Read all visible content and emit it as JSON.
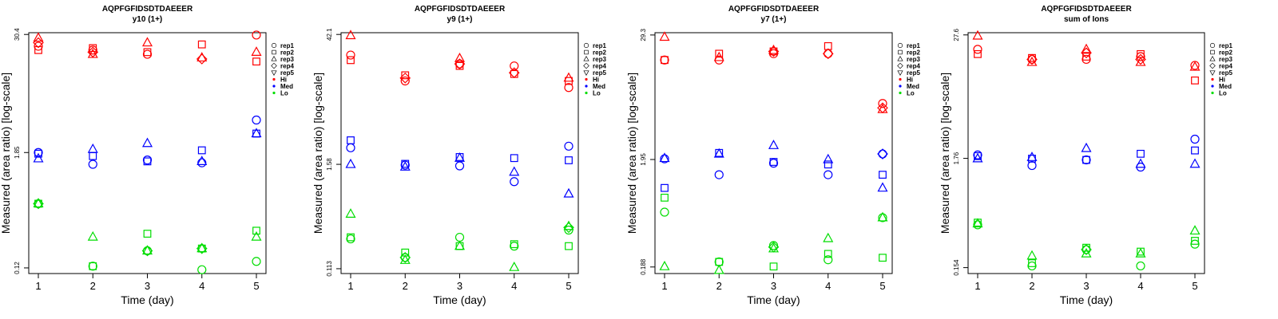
{
  "legend": {
    "shapes": [
      {
        "label": "rep1",
        "shape": "circle"
      },
      {
        "label": "rep2",
        "shape": "square"
      },
      {
        "label": "rep3",
        "shape": "triangle"
      },
      {
        "label": "rep4",
        "shape": "diamond"
      },
      {
        "label": "rep5",
        "shape": "triangle-down"
      }
    ],
    "levels": [
      {
        "label": "Hi",
        "color": "#ff0000"
      },
      {
        "label": "Med",
        "color": "#0000ff"
      },
      {
        "label": "Lo",
        "color": "#00dd00"
      }
    ]
  },
  "chart_data": [
    {
      "type": "scatter",
      "title": "AQPFGFIDSDTDAEEER",
      "subtitle": "y10 (1+)",
      "xlabel": "Time (day)",
      "ylabel": "Measured (area ratio) [log-scale]",
      "y_scale": "log",
      "x_ticks": [
        1,
        2,
        3,
        4,
        5
      ],
      "y_ticks": [
        "0.12",
        "1.85",
        "30.4"
      ],
      "y_tick_values": [
        0.12,
        1.85,
        30.4
      ],
      "ylim": [
        0.105,
        31.7
      ],
      "legend_position": "right",
      "series": [
        {
          "level": "Hi",
          "rep": "rep1",
          "x": [
            1,
            2,
            3,
            4,
            5
          ],
          "y": [
            23.0,
            21.0,
            19.0,
            null,
            30.0
          ]
        },
        {
          "level": "Hi",
          "rep": "rep2",
          "x": [
            1,
            2,
            3,
            4,
            5
          ],
          "y": [
            21.0,
            22.0,
            20.0,
            24.0,
            16.0
          ]
        },
        {
          "level": "Hi",
          "rep": "rep3",
          "x": [
            1,
            2,
            3,
            4,
            5
          ],
          "y": [
            28.0,
            19.0,
            25.0,
            17.5,
            20.0
          ]
        },
        {
          "level": "Hi",
          "rep": "rep4",
          "x": [
            1,
            2,
            3,
            4,
            5
          ],
          "y": [
            25.0,
            20.0,
            null,
            17.0,
            null
          ]
        },
        {
          "level": "Med",
          "rep": "rep1",
          "x": [
            1,
            2,
            3,
            4,
            5
          ],
          "y": [
            1.85,
            1.4,
            1.55,
            1.45,
            4.0
          ]
        },
        {
          "level": "Med",
          "rep": "rep2",
          "x": [
            1,
            2,
            3,
            4,
            5
          ],
          "y": [
            1.8,
            1.7,
            1.5,
            1.95,
            2.9
          ]
        },
        {
          "level": "Med",
          "rep": "rep3",
          "x": [
            1,
            2,
            3,
            4,
            5
          ],
          "y": [
            1.6,
            2.0,
            2.3,
            1.5,
            2.9
          ]
        },
        {
          "level": "Lo",
          "rep": "rep1",
          "x": [
            1,
            2,
            3,
            4,
            5
          ],
          "y": [
            0.55,
            0.125,
            0.18,
            0.115,
            0.14
          ]
        },
        {
          "level": "Lo",
          "rep": "rep2",
          "x": [
            1,
            2,
            3,
            4,
            5
          ],
          "y": [
            0.55,
            0.125,
            0.27,
            0.19,
            0.29
          ]
        },
        {
          "level": "Lo",
          "rep": "rep3",
          "x": [
            1,
            2,
            3,
            4,
            5
          ],
          "y": [
            0.55,
            0.25,
            0.18,
            0.19,
            0.25
          ]
        },
        {
          "level": "Lo",
          "rep": "rep4",
          "x": [
            1,
            2,
            3,
            4,
            5
          ],
          "y": [
            0.55,
            null,
            0.18,
            0.19,
            null
          ]
        }
      ]
    },
    {
      "type": "scatter",
      "title": "AQPFGFIDSDTDAEEER",
      "subtitle": "y9 (1+)",
      "xlabel": "Time (day)",
      "ylabel": "Measured (area ratio) [log-scale]",
      "y_scale": "log",
      "x_ticks": [
        1,
        2,
        3,
        4,
        5
      ],
      "y_ticks": [
        "0.113",
        "1.58",
        "42.1"
      ],
      "y_tick_values": [
        0.113,
        1.58,
        42.1
      ],
      "ylim": [
        0.1,
        44.0
      ],
      "legend_position": "right",
      "series": [
        {
          "level": "Hi",
          "rep": "rep1",
          "x": [
            1,
            2,
            3,
            4,
            5
          ],
          "y": [
            25.0,
            13.0,
            20.0,
            19.0,
            11.0
          ]
        },
        {
          "level": "Hi",
          "rep": "rep2",
          "x": [
            1,
            2,
            3,
            4,
            5
          ],
          "y": [
            22.0,
            15.0,
            19.0,
            15.5,
            13.0
          ]
        },
        {
          "level": "Hi",
          "rep": "rep3",
          "x": [
            1,
            2,
            3,
            4,
            5
          ],
          "y": [
            41.0,
            null,
            23.0,
            null,
            14.0
          ]
        },
        {
          "level": "Hi",
          "rep": "rep4",
          "x": [
            1,
            2,
            3,
            4,
            5
          ],
          "y": [
            null,
            14.0,
            20.0,
            16.0,
            null
          ]
        },
        {
          "level": "Med",
          "rep": "rep1",
          "x": [
            1,
            2,
            3,
            4,
            5
          ],
          "y": [
            2.4,
            1.55,
            1.52,
            1.02,
            2.5
          ]
        },
        {
          "level": "Med",
          "rep": "rep2",
          "x": [
            1,
            2,
            3,
            4,
            5
          ],
          "y": [
            2.9,
            1.6,
            1.9,
            1.85,
            1.75
          ]
        },
        {
          "level": "Med",
          "rep": "rep3",
          "x": [
            1,
            2,
            3,
            4,
            5
          ],
          "y": [
            1.58,
            1.48,
            1.85,
            1.3,
            0.75
          ]
        },
        {
          "level": "Lo",
          "rep": "rep1",
          "x": [
            1,
            2,
            3,
            4,
            5
          ],
          "y": [
            0.24,
            0.15,
            0.25,
            0.2,
            0.3
          ]
        },
        {
          "level": "Lo",
          "rep": "rep2",
          "x": [
            1,
            2,
            3,
            4,
            5
          ],
          "y": [
            0.25,
            0.17,
            0.2,
            0.21,
            0.2
          ]
        },
        {
          "level": "Lo",
          "rep": "rep3",
          "x": [
            1,
            2,
            3,
            4,
            5
          ],
          "y": [
            0.45,
            0.14,
            0.2,
            0.117,
            0.33
          ]
        },
        {
          "level": "Lo",
          "rep": "rep4",
          "x": [
            1,
            2,
            3,
            4,
            5
          ],
          "y": [
            null,
            0.15,
            null,
            null,
            0.32
          ]
        }
      ]
    },
    {
      "type": "scatter",
      "title": "AQPFGFIDSDTDAEEER",
      "subtitle": "y7 (1+)",
      "xlabel": "Time (day)",
      "ylabel": "Measured (area ratio) [log-scale]",
      "y_scale": "log",
      "x_ticks": [
        1,
        2,
        3,
        4,
        5
      ],
      "y_ticks": [
        "0.188",
        "1.95",
        "29.3"
      ],
      "y_tick_values": [
        0.188,
        1.95,
        29.3
      ],
      "ylim": [
        0.163,
        30.8
      ],
      "legend_position": "right",
      "series": [
        {
          "level": "Hi",
          "rep": "rep1",
          "x": [
            1,
            2,
            3,
            4,
            5
          ],
          "y": [
            17.0,
            17.0,
            19.5,
            19.5,
            6.6
          ]
        },
        {
          "level": "Hi",
          "rep": "rep2",
          "x": [
            1,
            2,
            3,
            4,
            5
          ],
          "y": [
            17.0,
            19.5,
            20.5,
            23.0,
            null
          ]
        },
        {
          "level": "Hi",
          "rep": "rep3",
          "x": [
            1,
            2,
            3,
            4,
            5
          ],
          "y": [
            28.0,
            18.0,
            21.0,
            null,
            5.8
          ]
        },
        {
          "level": "Hi",
          "rep": "rep4",
          "x": [
            1,
            2,
            3,
            4,
            5
          ],
          "y": [
            null,
            null,
            20.5,
            19.5,
            6.0
          ]
        },
        {
          "level": "Med",
          "rep": "rep1",
          "x": [
            1,
            2,
            3,
            4,
            5
          ],
          "y": [
            1.98,
            1.4,
            1.8,
            1.4,
            2.2
          ]
        },
        {
          "level": "Med",
          "rep": "rep2",
          "x": [
            1,
            2,
            3,
            4,
            5
          ],
          "y": [
            1.05,
            2.25,
            1.85,
            1.75,
            1.4
          ]
        },
        {
          "level": "Med",
          "rep": "rep3",
          "x": [
            1,
            2,
            3,
            4,
            5
          ],
          "y": [
            2.0,
            2.2,
            2.65,
            1.95,
            1.05
          ]
        },
        {
          "level": "Med",
          "rep": "rep4",
          "x": [
            1,
            2,
            3,
            4,
            5
          ],
          "y": [
            null,
            null,
            null,
            null,
            2.2
          ]
        },
        {
          "level": "Lo",
          "rep": "rep1",
          "x": [
            1,
            2,
            3,
            4,
            5
          ],
          "y": [
            0.62,
            0.21,
            0.3,
            0.22,
            0.55
          ]
        },
        {
          "level": "Lo",
          "rep": "rep2",
          "x": [
            1,
            2,
            3,
            4,
            5
          ],
          "y": [
            0.85,
            0.21,
            0.19,
            0.25,
            0.23
          ]
        },
        {
          "level": "Lo",
          "rep": "rep3",
          "x": [
            1,
            2,
            3,
            4,
            5
          ],
          "y": [
            0.19,
            0.175,
            0.28,
            0.35,
            0.55
          ]
        },
        {
          "level": "Lo",
          "rep": "rep4",
          "x": [
            1,
            2,
            3,
            4,
            5
          ],
          "y": [
            null,
            null,
            0.29,
            null,
            null
          ]
        }
      ]
    },
    {
      "type": "scatter",
      "title": "AQPFGFIDSDTDAEEER",
      "subtitle": "sum of Ions",
      "xlabel": "Time (day)",
      "ylabel": "Measured (area ratio) [log-scale]",
      "y_scale": "log",
      "x_ticks": [
        1,
        2,
        3,
        4,
        5
      ],
      "y_ticks": [
        "0.154",
        "1.76",
        "27.6"
      ],
      "y_tick_values": [
        0.154,
        1.76,
        27.6
      ],
      "ylim": [
        0.135,
        29.0
      ],
      "legend_position": "right",
      "series": [
        {
          "level": "Hi",
          "rep": "rep1",
          "x": [
            1,
            2,
            3,
            4,
            5
          ],
          "y": [
            20.0,
            16.0,
            16.0,
            17.0,
            14.0
          ]
        },
        {
          "level": "Hi",
          "rep": "rep2",
          "x": [
            1,
            2,
            3,
            4,
            5
          ],
          "y": [
            18.0,
            16.5,
            17.0,
            18.0,
            10.0
          ]
        },
        {
          "level": "Hi",
          "rep": "rep3",
          "x": [
            1,
            2,
            3,
            4,
            5
          ],
          "y": [
            27.0,
            15.0,
            20.0,
            15.0,
            13.5
          ]
        },
        {
          "level": "Hi",
          "rep": "rep4",
          "x": [
            1,
            2,
            3,
            4,
            5
          ],
          "y": [
            null,
            16.0,
            18.5,
            16.0,
            null
          ]
        },
        {
          "level": "Med",
          "rep": "rep1",
          "x": [
            1,
            2,
            3,
            4,
            5
          ],
          "y": [
            1.9,
            1.5,
            1.7,
            1.45,
            2.7
          ]
        },
        {
          "level": "Med",
          "rep": "rep2",
          "x": [
            1,
            2,
            3,
            4,
            5
          ],
          "y": [
            1.85,
            1.75,
            1.7,
            1.95,
            2.1
          ]
        },
        {
          "level": "Med",
          "rep": "rep3",
          "x": [
            1,
            2,
            3,
            4,
            5
          ],
          "y": [
            1.75,
            1.8,
            2.2,
            1.55,
            1.55
          ]
        },
        {
          "level": "Lo",
          "rep": "rep1",
          "x": [
            1,
            2,
            3,
            4,
            5
          ],
          "y": [
            0.4,
            0.16,
            0.23,
            0.16,
            0.26
          ]
        },
        {
          "level": "Lo",
          "rep": "rep2",
          "x": [
            1,
            2,
            3,
            4,
            5
          ],
          "y": [
            0.42,
            0.17,
            0.24,
            0.22,
            0.28
          ]
        },
        {
          "level": "Lo",
          "rep": "rep3",
          "x": [
            1,
            2,
            3,
            4,
            5
          ],
          "y": [
            0.41,
            0.2,
            0.21,
            0.21,
            0.35
          ]
        },
        {
          "level": "Lo",
          "rep": "rep4",
          "x": [
            1,
            2,
            3,
            4,
            5
          ],
          "y": [
            null,
            null,
            0.23,
            null,
            null
          ]
        }
      ]
    }
  ]
}
